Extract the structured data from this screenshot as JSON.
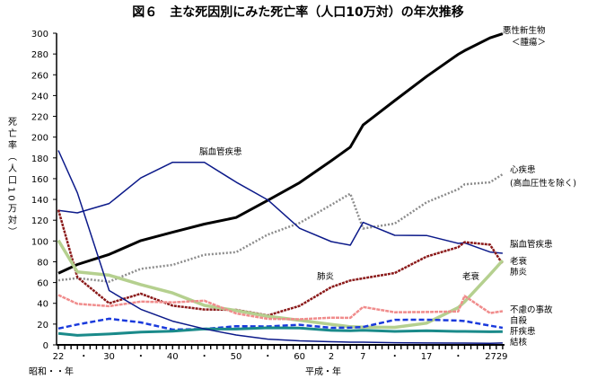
{
  "chart_data": {
    "type": "line",
    "title": "図６　主な死因別にみた死亡率（人口10万対）の年次推移",
    "ylabel": "死亡率（人口10万対）",
    "xlabel_showa": "昭和・・年",
    "xlabel_heisei": "平成・年",
    "ylim": [
      0,
      300
    ],
    "yticks": [
      0,
      20,
      40,
      60,
      80,
      100,
      120,
      140,
      160,
      180,
      200,
      220,
      240,
      260,
      280,
      300
    ],
    "xticks": [
      {
        "year": 1947,
        "label": "22"
      },
      {
        "year": 1951,
        "label": "・"
      },
      {
        "year": 1955,
        "label": "30"
      },
      {
        "year": 1960,
        "label": "・"
      },
      {
        "year": 1965,
        "label": "40"
      },
      {
        "year": 1970,
        "label": "・"
      },
      {
        "year": 1975,
        "label": "50"
      },
      {
        "year": 1980,
        "label": "・"
      },
      {
        "year": 1985,
        "label": "60"
      },
      {
        "year": 1990,
        "label": "2"
      },
      {
        "year": 1995,
        "label": "7"
      },
      {
        "year": 2000,
        "label": "・"
      },
      {
        "year": 2005,
        "label": "17"
      },
      {
        "year": 2010,
        "label": "・"
      },
      {
        "year": 2015,
        "label": "2729"
      }
    ],
    "x": [
      1947,
      1950,
      1955,
      1960,
      1965,
      1970,
      1975,
      1980,
      1985,
      1990,
      1993,
      1995,
      2000,
      2005,
      2010,
      2011,
      2015,
      2017
    ],
    "series": [
      {
        "name": "悪性新生物＜腫瘍＞",
        "color": "#000000",
        "values": [
          69.0,
          77.4,
          87.1,
          100.4,
          108.4,
          116.3,
          122.6,
          139.1,
          156.1,
          177.2,
          190.4,
          211.6,
          235.2,
          258.3,
          279.7,
          283.2,
          295.5,
          299.5
        ]
      },
      {
        "name": "心疾患（高血圧性を除く）",
        "color": "#8c8c8c",
        "values": [
          62.2,
          64.2,
          60.9,
          73.2,
          77.0,
          86.7,
          89.2,
          106.2,
          117.3,
          134.8,
          145.6,
          112.0,
          116.8,
          137.2,
          149.8,
          154.5,
          156.5,
          164.3
        ]
      },
      {
        "name": "脳血管疾患",
        "color": "#0c1a8a",
        "values": [
          129.4,
          127.1,
          136.1,
          160.7,
          175.8,
          175.8,
          156.7,
          139.5,
          112.2,
          99.4,
          96.0,
          117.9,
          105.5,
          105.3,
          97.7,
          98.2,
          89.4,
          88.2
        ]
      },
      {
        "name": "肺炎",
        "color": "#8b1a1a",
        "values": [
          130.0,
          65.1,
          40.0,
          49.3,
          37.8,
          34.1,
          33.7,
          28.4,
          37.5,
          55.6,
          62.0,
          64.1,
          69.2,
          85.0,
          94.1,
          98.9,
          96.5,
          77.7
        ]
      },
      {
        "name": "老衰",
        "color": "#b5d08f",
        "values": [
          100.6,
          70.2,
          67.1,
          58.0,
          50.0,
          38.0,
          33.0,
          27.6,
          23.7,
          19.7,
          17.5,
          17.1,
          16.9,
          20.9,
          35.9,
          41.4,
          67.7,
          81.3
        ]
      },
      {
        "name": "不慮の事故",
        "color": "#f08c8c",
        "values": [
          48.0,
          39.5,
          37.3,
          41.7,
          40.9,
          42.5,
          30.3,
          25.1,
          24.6,
          26.2,
          26.0,
          36.5,
          31.4,
          31.6,
          32.2,
          47.1,
          30.6,
          32.4
        ]
      },
      {
        "name": "自殺",
        "color": "#1a3adc",
        "values": [
          15.7,
          19.6,
          25.2,
          21.6,
          14.7,
          15.3,
          18.0,
          17.7,
          19.4,
          16.4,
          16.6,
          17.2,
          24.1,
          24.2,
          23.4,
          22.9,
          18.5,
          16.4
        ]
      },
      {
        "name": "肝疾患",
        "color": "#1a8a8a",
        "values": [
          11.0,
          9.2,
          10.5,
          12.4,
          13.1,
          15.4,
          15.2,
          16.4,
          16.2,
          13.9,
          13.6,
          14.0,
          13.0,
          13.6,
          13.0,
          13.0,
          12.6,
          12.8
        ]
      },
      {
        "name": "結核",
        "color": "#0c1a8a",
        "values": [
          187.2,
          146.4,
          52.3,
          34.2,
          22.8,
          15.4,
          9.5,
          5.5,
          3.9,
          3.0,
          2.6,
          2.6,
          2.1,
          1.8,
          1.7,
          1.7,
          1.5,
          1.8
        ]
      }
    ],
    "inline_labels": [
      "脳血管疾患",
      "肺炎",
      "老衰"
    ]
  }
}
